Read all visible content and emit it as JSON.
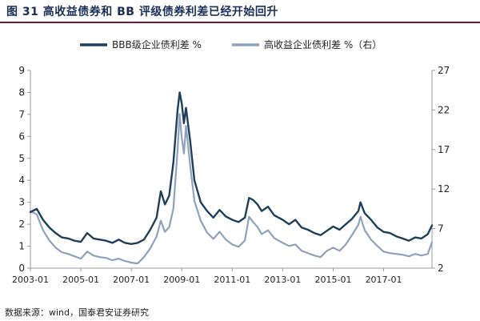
{
  "figure": {
    "title": "图 31  高收益债券和 BB 评级债券利差已经开始回升",
    "source": "数据来源：wind，国泰君安证券研究"
  },
  "chart_data": {
    "type": "line",
    "title": "",
    "xlabel": "",
    "ylabel": "",
    "x_ticks": [
      "2003-01",
      "2005-01",
      "2007-01",
      "2009-01",
      "2011-01",
      "2013-01",
      "2015-01",
      "2017-01"
    ],
    "x_range": [
      "2003-01",
      "2018-12"
    ],
    "y_left": {
      "range": [
        0,
        9
      ],
      "ticks": [
        "0",
        "1",
        "2",
        "3",
        "4",
        "5",
        "6",
        "7",
        "8",
        "9"
      ]
    },
    "y_right": {
      "range": [
        2,
        27
      ],
      "ticks": [
        "2",
        "7",
        "12",
        "17",
        "22",
        "27"
      ]
    },
    "grid": false,
    "legend_position": "top",
    "series": [
      {
        "name": "BBB级企业债利差 %",
        "axis": "left",
        "color": "#1d3f5a",
        "points": [
          [
            "2003-01",
            2.55
          ],
          [
            "2003-04",
            2.7
          ],
          [
            "2003-07",
            2.2
          ],
          [
            "2003-10",
            1.85
          ],
          [
            "2004-01",
            1.6
          ],
          [
            "2004-04",
            1.4
          ],
          [
            "2004-07",
            1.35
          ],
          [
            "2004-10",
            1.25
          ],
          [
            "2005-01",
            1.2
          ],
          [
            "2005-04",
            1.6
          ],
          [
            "2005-07",
            1.35
          ],
          [
            "2005-10",
            1.3
          ],
          [
            "2006-01",
            1.25
          ],
          [
            "2006-04",
            1.15
          ],
          [
            "2006-07",
            1.3
          ],
          [
            "2006-10",
            1.15
          ],
          [
            "2007-01",
            1.1
          ],
          [
            "2007-04",
            1.15
          ],
          [
            "2007-07",
            1.3
          ],
          [
            "2007-10",
            1.75
          ],
          [
            "2008-01",
            2.3
          ],
          [
            "2008-03",
            3.5
          ],
          [
            "2008-05",
            2.9
          ],
          [
            "2008-07",
            3.3
          ],
          [
            "2008-09",
            4.8
          ],
          [
            "2008-11",
            7.2
          ],
          [
            "2008-12",
            8.0
          ],
          [
            "2009-01",
            7.5
          ],
          [
            "2009-02",
            6.6
          ],
          [
            "2009-03",
            7.3
          ],
          [
            "2009-05",
            5.8
          ],
          [
            "2009-07",
            4.0
          ],
          [
            "2009-10",
            3.0
          ],
          [
            "2010-01",
            2.6
          ],
          [
            "2010-04",
            2.3
          ],
          [
            "2010-07",
            2.65
          ],
          [
            "2010-10",
            2.35
          ],
          [
            "2011-01",
            2.2
          ],
          [
            "2011-04",
            2.1
          ],
          [
            "2011-07",
            2.3
          ],
          [
            "2011-09",
            3.2
          ],
          [
            "2011-11",
            3.1
          ],
          [
            "2012-01",
            2.9
          ],
          [
            "2012-03",
            2.6
          ],
          [
            "2012-06",
            2.8
          ],
          [
            "2012-09",
            2.4
          ],
          [
            "2013-01",
            2.2
          ],
          [
            "2013-04",
            2.0
          ],
          [
            "2013-07",
            2.2
          ],
          [
            "2013-10",
            1.85
          ],
          [
            "2014-01",
            1.75
          ],
          [
            "2014-04",
            1.6
          ],
          [
            "2014-07",
            1.5
          ],
          [
            "2014-10",
            1.7
          ],
          [
            "2015-01",
            1.9
          ],
          [
            "2015-04",
            1.75
          ],
          [
            "2015-07",
            2.0
          ],
          [
            "2015-10",
            2.25
          ],
          [
            "2016-01",
            2.6
          ],
          [
            "2016-02",
            3.0
          ],
          [
            "2016-04",
            2.5
          ],
          [
            "2016-07",
            2.2
          ],
          [
            "2016-10",
            1.85
          ],
          [
            "2017-01",
            1.65
          ],
          [
            "2017-04",
            1.6
          ],
          [
            "2017-07",
            1.45
          ],
          [
            "2017-10",
            1.35
          ],
          [
            "2018-01",
            1.25
          ],
          [
            "2018-04",
            1.4
          ],
          [
            "2018-07",
            1.35
          ],
          [
            "2018-10",
            1.55
          ],
          [
            "2018-12",
            1.95
          ]
        ]
      },
      {
        "name": "高收益企业债利差 %（右）",
        "axis": "right",
        "color": "#8ea2bd",
        "points": [
          [
            "2003-01",
            9.2
          ],
          [
            "2003-04",
            8.8
          ],
          [
            "2003-07",
            6.8
          ],
          [
            "2003-10",
            5.5
          ],
          [
            "2004-01",
            4.6
          ],
          [
            "2004-04",
            4.0
          ],
          [
            "2004-07",
            3.8
          ],
          [
            "2004-10",
            3.5
          ],
          [
            "2005-01",
            3.2
          ],
          [
            "2005-04",
            4.1
          ],
          [
            "2005-07",
            3.6
          ],
          [
            "2005-10",
            3.4
          ],
          [
            "2006-01",
            3.3
          ],
          [
            "2006-04",
            3.0
          ],
          [
            "2006-07",
            3.2
          ],
          [
            "2006-10",
            2.9
          ],
          [
            "2007-01",
            2.7
          ],
          [
            "2007-04",
            2.6
          ],
          [
            "2007-07",
            3.4
          ],
          [
            "2007-10",
            4.5
          ],
          [
            "2008-01",
            6.0
          ],
          [
            "2008-03",
            8.0
          ],
          [
            "2008-05",
            6.6
          ],
          [
            "2008-07",
            7.2
          ],
          [
            "2008-09",
            9.5
          ],
          [
            "2008-11",
            17.0
          ],
          [
            "2008-12",
            21.5
          ],
          [
            "2009-01",
            18.5
          ],
          [
            "2009-02",
            16.5
          ],
          [
            "2009-03",
            20.0
          ],
          [
            "2009-05",
            15.0
          ],
          [
            "2009-07",
            10.5
          ],
          [
            "2009-10",
            8.0
          ],
          [
            "2010-01",
            6.5
          ],
          [
            "2010-04",
            5.7
          ],
          [
            "2010-07",
            6.6
          ],
          [
            "2010-10",
            5.6
          ],
          [
            "2011-01",
            5.0
          ],
          [
            "2011-04",
            4.7
          ],
          [
            "2011-07",
            5.5
          ],
          [
            "2011-09",
            8.5
          ],
          [
            "2011-11",
            7.8
          ],
          [
            "2012-01",
            7.2
          ],
          [
            "2012-03",
            6.3
          ],
          [
            "2012-06",
            6.8
          ],
          [
            "2012-09",
            5.8
          ],
          [
            "2013-01",
            5.2
          ],
          [
            "2013-04",
            4.8
          ],
          [
            "2013-07",
            5.0
          ],
          [
            "2013-10",
            4.2
          ],
          [
            "2014-01",
            3.9
          ],
          [
            "2014-04",
            3.6
          ],
          [
            "2014-07",
            3.4
          ],
          [
            "2014-10",
            4.2
          ],
          [
            "2015-01",
            4.6
          ],
          [
            "2015-04",
            4.2
          ],
          [
            "2015-07",
            5.0
          ],
          [
            "2015-10",
            6.2
          ],
          [
            "2016-01",
            7.5
          ],
          [
            "2016-02",
            8.5
          ],
          [
            "2016-04",
            6.8
          ],
          [
            "2016-07",
            5.6
          ],
          [
            "2016-10",
            4.8
          ],
          [
            "2017-01",
            4.1
          ],
          [
            "2017-04",
            3.9
          ],
          [
            "2017-07",
            3.8
          ],
          [
            "2017-10",
            3.7
          ],
          [
            "2018-01",
            3.5
          ],
          [
            "2018-04",
            3.8
          ],
          [
            "2018-07",
            3.6
          ],
          [
            "2018-10",
            3.8
          ],
          [
            "2018-12",
            5.3
          ]
        ]
      }
    ]
  }
}
